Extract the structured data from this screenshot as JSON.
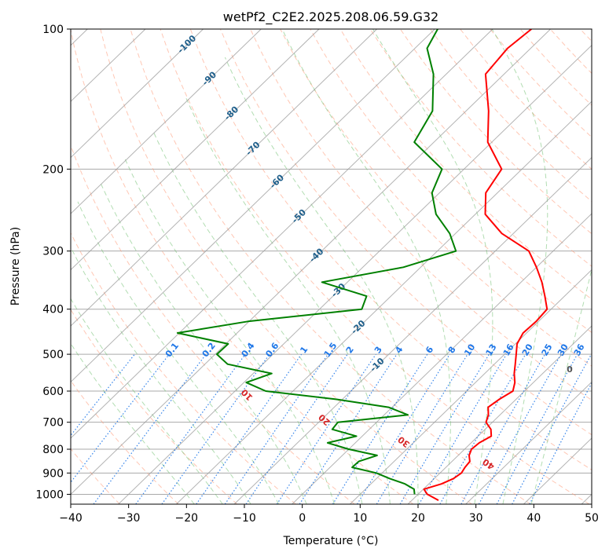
{
  "chart_data": {
    "type": "line",
    "chart_kind": "skew-T log-P diagram",
    "title": "wetPf2_C2E2.2025.208.06.59.G32",
    "xlabel": "Temperature (°C)",
    "ylabel": "Pressure (hPa)",
    "xlim": [
      -40,
      50
    ],
    "ylim": [
      1050,
      100
    ],
    "y_scale": "log",
    "x_ticks": [
      -40,
      -30,
      -20,
      -10,
      0,
      10,
      20,
      30,
      40,
      50
    ],
    "y_ticks": [
      100,
      200,
      300,
      400,
      500,
      600,
      700,
      800,
      900,
      1000
    ],
    "grid": true,
    "colors": {
      "temperature": "#ff0000",
      "dewpoint": "#008000",
      "isotherm": "#999999",
      "dry_adiabat": "#ff9977",
      "moist_adiabat": "#66bb66",
      "mixing_ratio": "#1f77e8",
      "isotherm_label": "#1f5f8b",
      "dry_adiabat_label": "#d62728",
      "moist_adiabat_label": "#555555"
    },
    "isotherm_labels": [
      -100,
      -90,
      -80,
      -70,
      -60,
      -50,
      -40,
      -30,
      -20,
      -10
    ],
    "mixing_ratio_labels": [
      "0.1",
      "0.2",
      "0.4",
      "0.6",
      "1",
      "1.5",
      "2",
      "3",
      "4",
      "6",
      "8",
      "10",
      "13",
      "16",
      "20",
      "25",
      "30",
      "36"
    ],
    "dry_adiabat_labels": [
      10,
      20,
      30,
      40
    ],
    "moist_adiabat_labels": [
      0
    ],
    "series": [
      {
        "name": "temperature",
        "points": [
          [
            24.6,
            1030
          ],
          [
            21.6,
            1000
          ],
          [
            20.1,
            975
          ],
          [
            22.2,
            950
          ],
          [
            23.3,
            925
          ],
          [
            23.7,
            900
          ],
          [
            23.3,
            875
          ],
          [
            23.1,
            850
          ],
          [
            21.9,
            825
          ],
          [
            21.2,
            800
          ],
          [
            21.4,
            775
          ],
          [
            22.3,
            750
          ],
          [
            21.0,
            725
          ],
          [
            18.9,
            700
          ],
          [
            18.0,
            675
          ],
          [
            16.6,
            650
          ],
          [
            17.1,
            625
          ],
          [
            18.0,
            600
          ],
          [
            16.8,
            575
          ],
          [
            15.1,
            550
          ],
          [
            13.6,
            525
          ],
          [
            12.0,
            500
          ],
          [
            10.3,
            475
          ],
          [
            9.4,
            450
          ],
          [
            9.6,
            425
          ],
          [
            9.3,
            400
          ],
          [
            6.6,
            375
          ],
          [
            3.6,
            350
          ],
          [
            0.0,
            325
          ],
          [
            -4.2,
            300
          ],
          [
            -12.0,
            275
          ],
          [
            -18.3,
            250
          ],
          [
            -22.0,
            225
          ],
          [
            -23.5,
            200
          ],
          [
            -30.7,
            175
          ],
          [
            -36.1,
            150
          ],
          [
            -43.2,
            125
          ],
          [
            -44.0,
            110
          ],
          [
            -43.3,
            100
          ]
        ]
      },
      {
        "name": "dewpoint",
        "points": [
          [
            19.4,
            1000
          ],
          [
            18.4,
            975
          ],
          [
            15.9,
            950
          ],
          [
            12.3,
            925
          ],
          [
            9.0,
            900
          ],
          [
            3.8,
            875
          ],
          [
            3.9,
            850
          ],
          [
            6.0,
            825
          ],
          [
            0.0,
            800
          ],
          [
            -4.8,
            775
          ],
          [
            -1.0,
            750
          ],
          [
            -6.4,
            725
          ],
          [
            -6.7,
            700
          ],
          [
            4.1,
            675
          ],
          [
            -0.6,
            650
          ],
          [
            -11.0,
            625
          ],
          [
            -24.7,
            600
          ],
          [
            -29.6,
            575
          ],
          [
            -26.8,
            550
          ],
          [
            -36.1,
            525
          ],
          [
            -39.7,
            500
          ],
          [
            -39.6,
            475
          ],
          [
            -50.3,
            450
          ],
          [
            -40.2,
            425
          ],
          [
            -22.7,
            400
          ],
          [
            -24.2,
            375
          ],
          [
            -34.4,
            350
          ],
          [
            -23.0,
            325
          ],
          [
            -16.8,
            300
          ],
          [
            -21.0,
            275
          ],
          [
            -26.8,
            250
          ],
          [
            -31.3,
            225
          ],
          [
            -33.8,
            200
          ],
          [
            -43.4,
            175
          ],
          [
            -45.8,
            150
          ],
          [
            -52.2,
            125
          ],
          [
            -57.9,
            110
          ],
          [
            -59.5,
            100
          ]
        ]
      }
    ]
  }
}
